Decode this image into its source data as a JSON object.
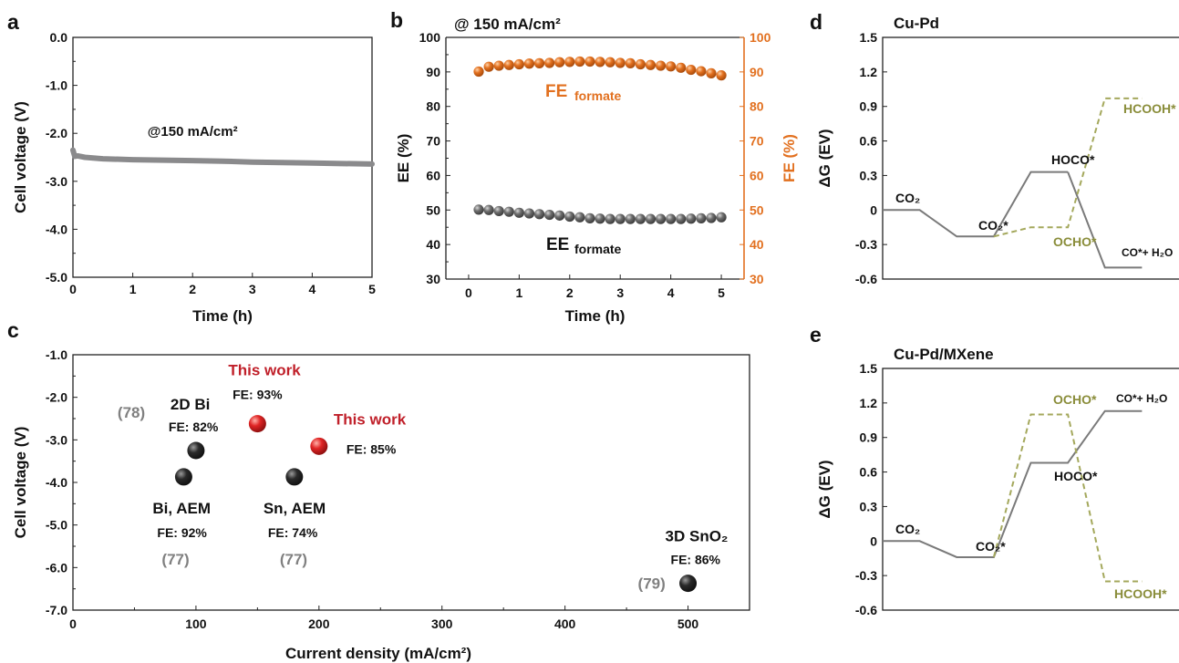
{
  "colors": {
    "voltage_line": "#8a8a8c",
    "fe_orange": "#e2701f",
    "ee_gray": "#6e6e6e",
    "red_text": "#c0202a",
    "gray_ref": "#808080",
    "olive_dashed": "#a4a85c",
    "olive_text": "#8a8d3a",
    "gray_path": "#7a7a7a",
    "sphere_black": "#111111",
    "sphere_red": "#e02525"
  },
  "chart_data": [
    {
      "panel": "a",
      "type": "line",
      "xlabel": "Time (h)",
      "ylabel": "Cell voltage (V)",
      "xlim": [
        0,
        5
      ],
      "ylim": [
        -5.0,
        0.0
      ],
      "xticks": [
        "0",
        "1",
        "2",
        "3",
        "4",
        "5"
      ],
      "yticks": [
        "0.0",
        "-1.0",
        "-2.0",
        "-3.0",
        "-4.0",
        "-5.0"
      ],
      "annotation": "@150 mA/cm²",
      "series": [
        {
          "x": [
            0,
            0.03,
            0.08,
            0.2,
            0.5,
            1,
            1.5,
            2,
            2.5,
            3,
            3.5,
            4,
            4.5,
            5
          ],
          "y": [
            -2.35,
            -2.48,
            -2.47,
            -2.5,
            -2.53,
            -2.55,
            -2.56,
            -2.57,
            -2.58,
            -2.6,
            -2.61,
            -2.62,
            -2.63,
            -2.64
          ]
        }
      ]
    },
    {
      "panel": "b",
      "type": "scatter",
      "title": "@ 150 mA/cm²",
      "xlabel": "Time (h)",
      "ylabel_left": "EE (%)",
      "ylabel_right": "FE (%)",
      "xlim": [
        -0.45,
        5.45
      ],
      "ylim": [
        30,
        100
      ],
      "xticks": [
        "0",
        "1",
        "2",
        "3",
        "4",
        "5"
      ],
      "yticks": [
        "30",
        "40",
        "50",
        "60",
        "70",
        "80",
        "90",
        "100"
      ],
      "series": [
        {
          "name": "FE formate",
          "x": [
            0.2,
            0.4,
            0.6,
            0.8,
            1.0,
            1.2,
            1.4,
            1.6,
            1.8,
            2.0,
            2.2,
            2.4,
            2.6,
            2.8,
            3.0,
            3.2,
            3.4,
            3.6,
            3.8,
            4.0,
            4.2,
            4.4,
            4.6,
            4.8,
            5.0
          ],
          "y": [
            90.1,
            91.5,
            91.8,
            92.0,
            92.2,
            92.4,
            92.5,
            92.6,
            92.8,
            92.9,
            93.0,
            93.0,
            92.9,
            92.8,
            92.6,
            92.5,
            92.2,
            92.0,
            91.8,
            91.6,
            91.2,
            90.6,
            90.2,
            89.6,
            89.0
          ]
        },
        {
          "name": "EE formate",
          "x": [
            0.2,
            0.4,
            0.6,
            0.8,
            1.0,
            1.2,
            1.4,
            1.6,
            1.8,
            2.0,
            2.2,
            2.4,
            2.6,
            2.8,
            3.0,
            3.2,
            3.4,
            3.6,
            3.8,
            4.0,
            4.2,
            4.4,
            4.6,
            4.8,
            5.0
          ],
          "y": [
            50.1,
            50.0,
            49.7,
            49.5,
            49.2,
            49.0,
            48.8,
            48.6,
            48.4,
            48.1,
            47.9,
            47.6,
            47.5,
            47.4,
            47.4,
            47.4,
            47.4,
            47.4,
            47.4,
            47.4,
            47.4,
            47.5,
            47.6,
            47.7,
            47.9
          ]
        }
      ],
      "labels": [
        {
          "main": "FE",
          "sub": "formate"
        },
        {
          "main": "EE",
          "sub": "formate"
        }
      ]
    },
    {
      "panel": "c",
      "type": "scatter",
      "xlabel": "Current density (mA/cm²)",
      "ylabel": "Cell voltage (V)",
      "xlim": [
        0,
        550
      ],
      "ylim": [
        -7.0,
        -1.0
      ],
      "xticks": [
        "0",
        "100",
        "200",
        "300",
        "400",
        "500"
      ],
      "yticks": [
        "-1.0",
        "-2.0",
        "-3.0",
        "-4.0",
        "-5.0",
        "-6.0",
        "-7.0"
      ],
      "points": [
        {
          "x": 150,
          "y": -2.62,
          "kind": "red",
          "label": "This work",
          "fe": "FE: 93%",
          "ref": ""
        },
        {
          "x": 200,
          "y": -3.15,
          "kind": "red",
          "label": "This work",
          "fe": "FE: 85%",
          "ref": ""
        },
        {
          "x": 100,
          "y": -3.25,
          "kind": "black",
          "label": "2D Bi",
          "fe": "FE: 82%",
          "ref": "(78)"
        },
        {
          "x": 90,
          "y": -3.87,
          "kind": "black",
          "label": "Bi, AEM",
          "fe": "FE: 92%",
          "ref": "(77)"
        },
        {
          "x": 180,
          "y": -3.87,
          "kind": "black",
          "label": "Sn, AEM",
          "fe": "FE: 74%",
          "ref": "(77)"
        },
        {
          "x": 500,
          "y": -6.37,
          "kind": "black",
          "label": "3D SnO₂",
          "fe": "FE: 86%",
          "ref": "(79)"
        }
      ]
    },
    {
      "panel": "d",
      "type": "line",
      "title": "Cu-Pd",
      "ylabel": "ΔG (EV)",
      "ylim": [
        -0.6,
        1.5
      ],
      "yticks": [
        "1.5",
        "1.2",
        "0.9",
        "0.6",
        "0.3",
        "0",
        "-0.3",
        "-0.6"
      ],
      "series": [
        {
          "style": "solid",
          "x": [
            0,
            1,
            2,
            3,
            4,
            5
          ],
          "y": [
            0,
            0,
            -0.23,
            -0.23,
            0.33,
            0.33
          ]
        },
        {
          "style": "solid",
          "x": [
            5,
            6,
            7
          ],
          "y": [
            0.33,
            -0.5,
            -0.5
          ]
        },
        {
          "style": "dashed",
          "x": [
            3,
            4,
            5,
            6,
            7
          ],
          "y": [
            -0.23,
            -0.15,
            -0.15,
            0.97,
            0.97
          ]
        }
      ],
      "labels": [
        "CO₂",
        "CO₂*",
        "HOCO*",
        "OCHO*",
        "HCOOH*",
        "CO*+ H₂O"
      ]
    },
    {
      "panel": "e",
      "type": "line",
      "title": "Cu-Pd/MXene",
      "ylabel": "ΔG (EV)",
      "ylim": [
        -0.6,
        1.5
      ],
      "yticks": [
        "1.5",
        "1.2",
        "0.9",
        "0.6",
        "0.3",
        "0",
        "-0.3",
        "-0.6"
      ],
      "series": [
        {
          "style": "solid",
          "x": [
            0,
            1,
            2,
            3,
            4,
            5,
            6,
            7
          ],
          "y": [
            0,
            0,
            -0.14,
            -0.14,
            0.68,
            0.68,
            1.13,
            1.13
          ]
        },
        {
          "style": "dashed",
          "x": [
            3,
            4,
            5,
            6,
            7
          ],
          "y": [
            -0.14,
            1.1,
            1.1,
            -0.35,
            -0.35
          ]
        }
      ],
      "labels": [
        "CO₂",
        "CO₂*",
        "HOCO*",
        "OCHO*",
        "HCOOH*",
        "CO*+ H₂O"
      ]
    }
  ]
}
